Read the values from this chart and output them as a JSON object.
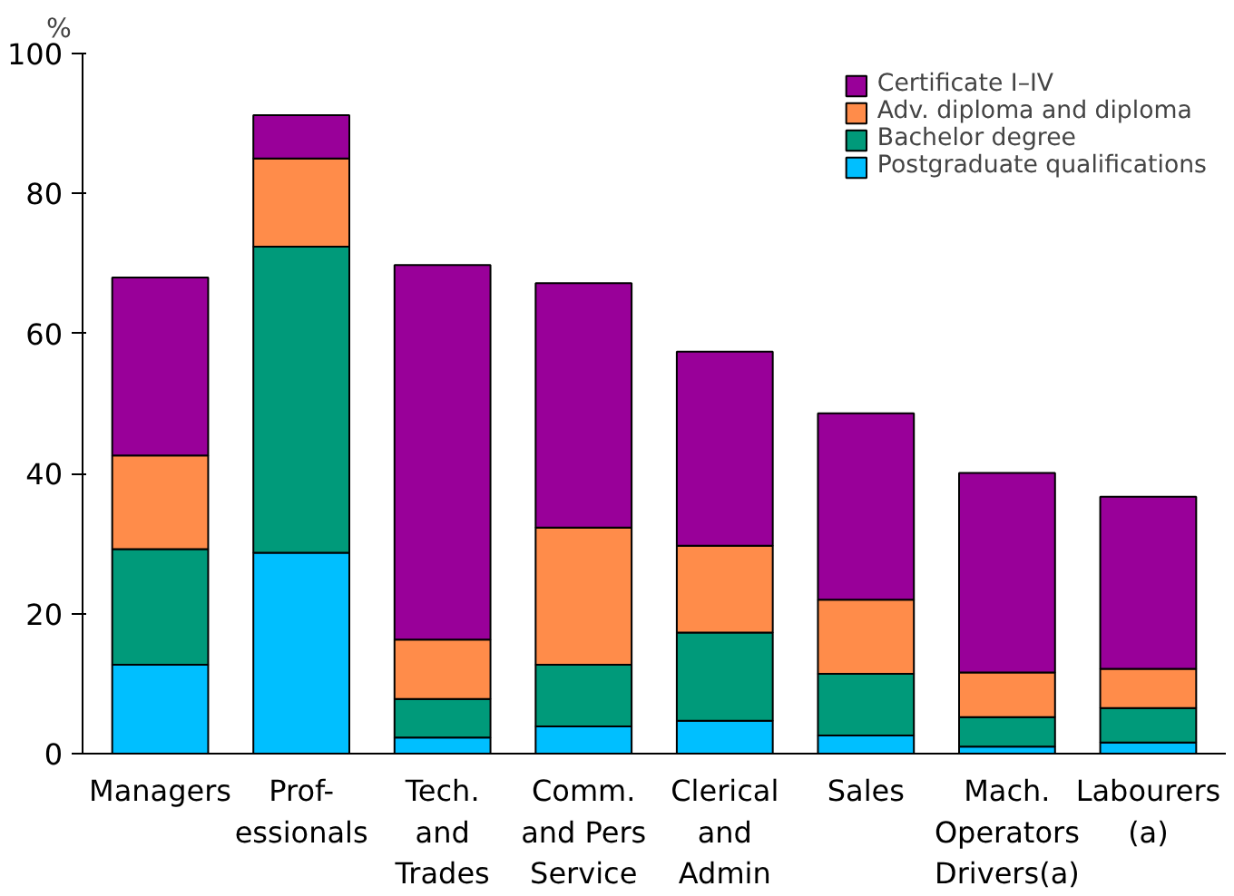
{
  "chart_data": {
    "type": "bar",
    "stacked": true,
    "ylabel": "%",
    "categories": [
      "Managers",
      "Prof-\nessionals",
      "Tech.\nand\nTrades",
      "Comm.\nand Pers\nService",
      "Clerical\nand\nAdmin",
      "Sales",
      "Mach.\nOperators\nDrivers(a)",
      "Labourers\n(a)"
    ],
    "series": [
      {
        "name": "Postgraduate qualifications",
        "color": "#00bfff",
        "values": [
          12.7,
          28.7,
          2.3,
          3.9,
          4.7,
          2.6,
          1.0,
          1.6
        ]
      },
      {
        "name": "Bachelor degree",
        "color": "#009a7a",
        "values": [
          16.5,
          43.7,
          5.5,
          8.8,
          12.6,
          8.8,
          4.2,
          4.9
        ]
      },
      {
        "name": "Adv. diploma and diploma",
        "color": "#ff8c4a",
        "values": [
          13.4,
          12.6,
          8.5,
          19.6,
          12.4,
          10.6,
          6.4,
          5.6
        ]
      },
      {
        "name": "Certificate I–IV",
        "color": "#990099",
        "values": [
          25.4,
          6.2,
          53.5,
          34.9,
          27.7,
          26.6,
          28.5,
          24.6
        ]
      }
    ],
    "ylim": [
      0,
      100
    ],
    "yticks": [
      0,
      20,
      40,
      60,
      80,
      100
    ],
    "grid": false,
    "legend": "top right"
  }
}
